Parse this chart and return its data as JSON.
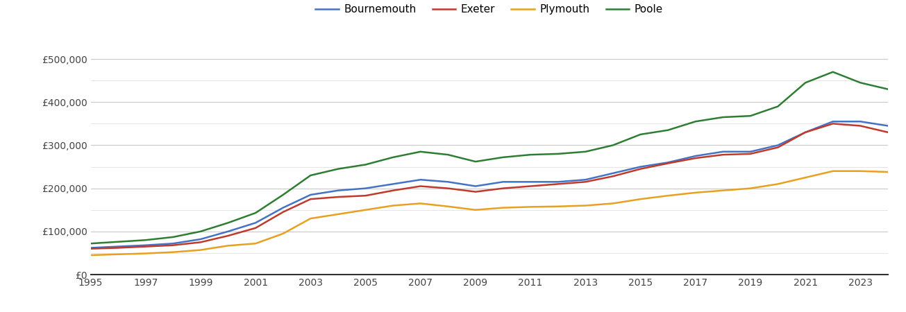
{
  "years": [
    1995,
    1996,
    1997,
    1998,
    1999,
    2000,
    2001,
    2002,
    2003,
    2004,
    2005,
    2006,
    2007,
    2008,
    2009,
    2010,
    2011,
    2012,
    2013,
    2014,
    2015,
    2016,
    2017,
    2018,
    2019,
    2020,
    2021,
    2022,
    2023,
    2024
  ],
  "bournemouth": [
    62000,
    65000,
    68000,
    72000,
    82000,
    100000,
    120000,
    155000,
    185000,
    195000,
    200000,
    210000,
    220000,
    215000,
    205000,
    215000,
    215000,
    215000,
    220000,
    235000,
    250000,
    260000,
    275000,
    285000,
    285000,
    300000,
    330000,
    355000,
    355000,
    345000
  ],
  "exeter": [
    60000,
    62000,
    65000,
    68000,
    75000,
    90000,
    108000,
    145000,
    175000,
    180000,
    183000,
    195000,
    205000,
    200000,
    192000,
    200000,
    205000,
    210000,
    215000,
    228000,
    245000,
    258000,
    270000,
    278000,
    280000,
    295000,
    330000,
    350000,
    345000,
    330000
  ],
  "plymouth": [
    45000,
    47000,
    49000,
    52000,
    57000,
    67000,
    72000,
    95000,
    130000,
    140000,
    150000,
    160000,
    165000,
    158000,
    150000,
    155000,
    157000,
    158000,
    160000,
    165000,
    175000,
    183000,
    190000,
    195000,
    200000,
    210000,
    225000,
    240000,
    240000,
    238000
  ],
  "poole": [
    72000,
    76000,
    80000,
    87000,
    100000,
    120000,
    143000,
    185000,
    230000,
    245000,
    255000,
    272000,
    285000,
    278000,
    262000,
    272000,
    278000,
    280000,
    285000,
    300000,
    325000,
    335000,
    355000,
    365000,
    368000,
    390000,
    445000,
    470000,
    445000,
    430000
  ],
  "colors": {
    "bournemouth": "#4472c4",
    "exeter": "#c0392b",
    "plymouth": "#e8a020",
    "poole": "#2e7d32"
  },
  "ylim": [
    0,
    550000
  ],
  "yticks_major": [
    0,
    100000,
    200000,
    300000,
    400000,
    500000
  ],
  "yticks_minor": [
    50000,
    150000,
    250000,
    350000,
    450000
  ],
  "ytick_labels": [
    "£0",
    "£100,000",
    "£200,000",
    "£300,000",
    "£400,000",
    "£500,000"
  ],
  "background_color": "#ffffff",
  "grid_color_major": "#c8c8c8",
  "grid_color_minor": "#e0e0e0",
  "line_width": 1.8
}
